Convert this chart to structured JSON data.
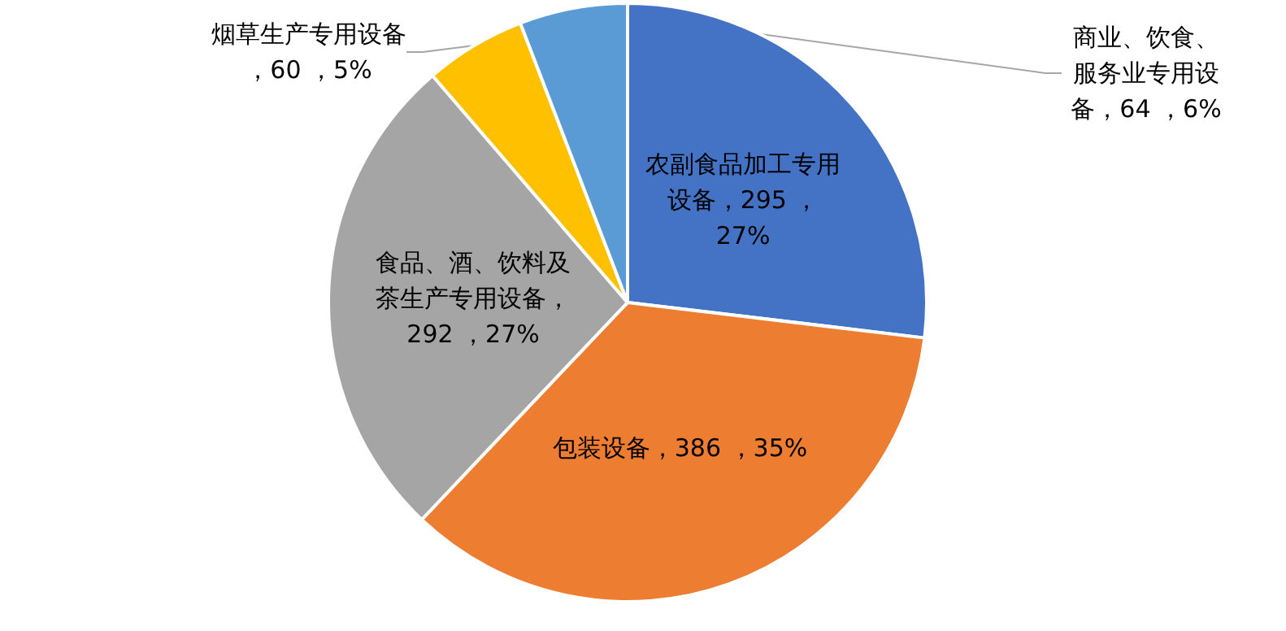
{
  "chart_data": {
    "type": "pie",
    "categories": [
      "农副食品加工专用设备",
      "包装设备",
      "食品、酒、饮料及茶生产专用设备",
      "烟草生产专用设备",
      "商业、饮食、服务业专用设备"
    ],
    "values": [
      295,
      386,
      292,
      60,
      64
    ],
    "value_labels": [
      "，295 ，27%",
      "，386 ，35%",
      "，292 ，27%",
      "，60 ，5%",
      "，64 ，6%"
    ],
    "colors": [
      "#4472c4",
      "#ed7d31",
      "#a5a5a5",
      "#ffc000",
      "#5b9bd5"
    ],
    "legend": false
  }
}
